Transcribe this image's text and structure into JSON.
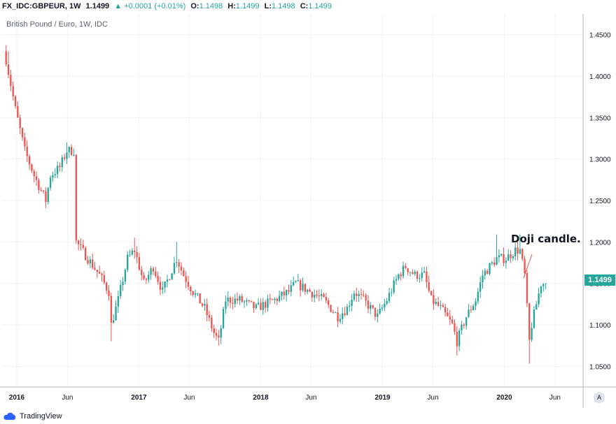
{
  "header": {
    "symbol": "FX_IDC:GBPEUR, 1W",
    "last": "1.1499",
    "change": "▲ +0.0001 (+0.01%)",
    "o_label": "O:",
    "o_value": "1.1498",
    "h_label": "H:",
    "h_value": "1.1499",
    "l_label": "L:",
    "l_value": "1.1498",
    "c_label": "C:",
    "c_value": "1.1499"
  },
  "legend": "British Pound / Euro, 1W, IDC",
  "price_tag": "1.1499",
  "annotation": "Doji candle.",
  "auto_button": "A",
  "footer": {
    "brand": "TradingView",
    "logo_icon": "tradingview-cloud-icon"
  },
  "colors": {
    "up": "#26a69a",
    "down": "#ef5350",
    "grid": "#f0f3fa",
    "axis": "#b2b5be"
  },
  "chart_data": {
    "type": "candlestick",
    "title": "British Pound / Euro, 1W, IDC",
    "ylim": [
      1.025,
      1.475
    ],
    "y_ticks": [
      1.05,
      1.1,
      1.15,
      1.2,
      1.25,
      1.3,
      1.35,
      1.4,
      1.45
    ],
    "y_tick_labels": [
      "1.0500",
      "1.1000",
      "1.1500",
      "1.2000",
      "1.2500",
      "1.3000",
      "1.3500",
      "1.4000",
      "1.4500"
    ],
    "x_tick_labels": [
      "2016",
      "Jun",
      "2017",
      "Jun",
      "2018",
      "Jun",
      "2019",
      "Jun",
      "2020",
      "Jun"
    ],
    "path": [
      [
        "2015-11-30",
        1.42
      ],
      [
        "2015-12-28",
        1.36
      ],
      [
        "2016-01-25",
        1.31
      ],
      [
        "2016-02-22",
        1.28
      ],
      [
        "2016-03-28",
        1.25
      ],
      [
        "2016-04-11",
        1.28
      ],
      [
        "2016-05-09",
        1.29
      ],
      [
        "2016-05-30",
        1.31
      ],
      [
        "2016-06-20",
        1.31
      ],
      [
        "2016-06-27",
        1.2
      ],
      [
        "2016-08-01",
        1.18
      ],
      [
        "2016-09-05",
        1.16
      ],
      [
        "2016-10-03",
        1.14
      ],
      [
        "2016-10-10",
        1.1
      ],
      [
        "2016-10-31",
        1.13
      ],
      [
        "2016-11-28",
        1.18
      ],
      [
        "2016-12-19",
        1.19
      ],
      [
        "2017-01-16",
        1.15
      ],
      [
        "2017-02-13",
        1.17
      ],
      [
        "2017-03-13",
        1.14
      ],
      [
        "2017-04-24",
        1.18
      ],
      [
        "2017-05-15",
        1.16
      ],
      [
        "2017-06-12",
        1.14
      ],
      [
        "2017-07-17",
        1.12
      ],
      [
        "2017-08-14",
        1.09
      ],
      [
        "2017-08-28",
        1.08
      ],
      [
        "2017-09-18",
        1.13
      ],
      [
        "2017-10-30",
        1.13
      ],
      [
        "2017-12-18",
        1.12
      ],
      [
        "2018-02-12",
        1.13
      ],
      [
        "2018-03-26",
        1.14
      ],
      [
        "2018-04-16",
        1.15
      ],
      [
        "2018-05-28",
        1.14
      ],
      [
        "2018-07-09",
        1.13
      ],
      [
        "2018-08-20",
        1.11
      ],
      [
        "2018-09-17",
        1.12
      ],
      [
        "2018-10-08",
        1.14
      ],
      [
        "2018-11-05",
        1.13
      ],
      [
        "2018-12-17",
        1.11
      ],
      [
        "2019-01-14",
        1.13
      ],
      [
        "2019-02-18",
        1.16
      ],
      [
        "2019-03-11",
        1.17
      ],
      [
        "2019-04-08",
        1.16
      ],
      [
        "2019-05-06",
        1.16
      ],
      [
        "2019-05-27",
        1.13
      ],
      [
        "2019-06-24",
        1.12
      ],
      [
        "2019-07-29",
        1.1
      ],
      [
        "2019-08-12",
        1.08
      ],
      [
        "2019-09-09",
        1.11
      ],
      [
        "2019-10-07",
        1.13
      ],
      [
        "2019-10-28",
        1.16
      ],
      [
        "2019-12-09",
        1.18
      ],
      [
        "2020-01-06",
        1.18
      ],
      [
        "2020-02-03",
        1.19
      ],
      [
        "2020-02-17",
        1.19
      ],
      [
        "2020-03-02",
        1.16
      ],
      [
        "2020-03-16",
        1.08
      ],
      [
        "2020-03-23",
        1.1
      ],
      [
        "2020-04-20",
        1.15
      ],
      [
        "2020-05-04",
        1.1499
      ]
    ],
    "highs": [
      [
        "2015-12-07",
        1.43
      ],
      [
        "2016-05-30",
        1.32
      ],
      [
        "2016-12-19",
        1.205
      ],
      [
        "2017-04-24",
        1.2
      ],
      [
        "2019-12-09",
        1.209
      ],
      [
        "2020-02-17",
        1.209
      ]
    ],
    "lows": [
      [
        "2016-10-10",
        1.08
      ],
      [
        "2017-08-28",
        1.075
      ],
      [
        "2019-08-12",
        1.063
      ],
      [
        "2020-03-16",
        1.053
      ]
    ],
    "last_close": 1.1499
  }
}
